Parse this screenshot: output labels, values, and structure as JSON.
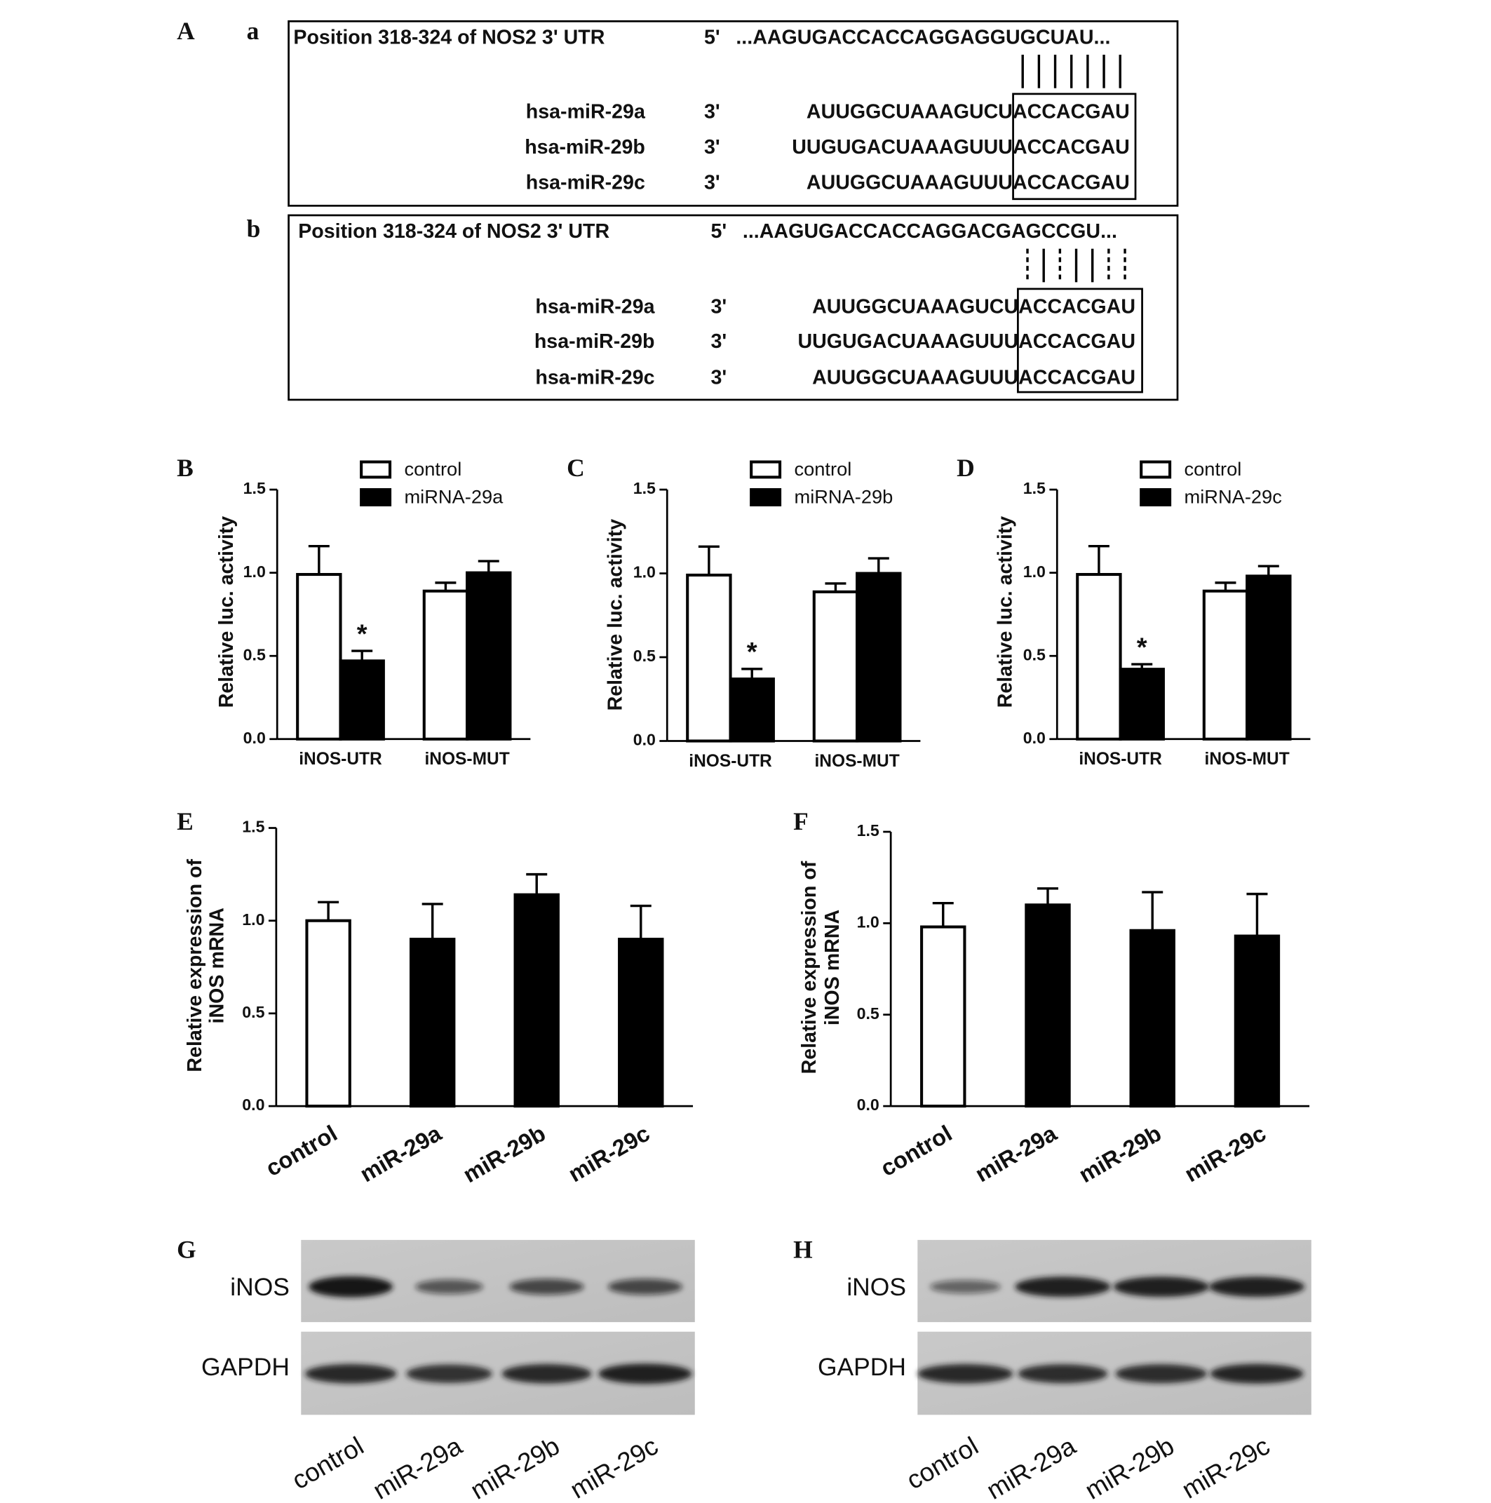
{
  "panel_a": {
    "label": "A",
    "parts": [
      {
        "label": "a",
        "title": "Position 318-324 of NOS2 3' UTR",
        "five": "5'",
        "target": "...AAGUGACCACCAGGAGGUGCUAU...",
        "mirnas": [
          {
            "name": "hsa-miR-29a",
            "three": "3'",
            "seq": "AUUGGCUAAAGUCUACCACGAU"
          },
          {
            "name": "hsa-miR-29b",
            "three": "3'",
            "seq": "UUGUGACUAAAGUUUACCACGAU"
          },
          {
            "name": "hsa-miR-29c",
            "three": "3'",
            "seq": "AUUGGCUAAAGUUUACCACGAU"
          }
        ]
      },
      {
        "label": "b",
        "title": "Position 318-324 of NOS2 3' UTR",
        "five": "5'",
        "target": "...AAGUGACCACCAGGACGAGCCGU...",
        "mirnas": [
          {
            "name": "hsa-miR-29a",
            "three": "3'",
            "seq": "AUUGGCUAAAGUCUACCACGAU"
          },
          {
            "name": "hsa-miR-29b",
            "three": "3'",
            "seq": "UUGUGACUAAAGUUUACCACGAU"
          },
          {
            "name": "hsa-miR-29c",
            "three": "3'",
            "seq": "AUUGGCUAAAGUUUACCACGAU"
          }
        ]
      }
    ]
  },
  "chart_data": [
    {
      "type": "bar",
      "label": "B",
      "y_label": [
        "Relative luc. activity"
      ],
      "categories": [
        "iNOS-UTR",
        "iNOS-MUT"
      ],
      "series": [
        {
          "name": "control",
          "color": "#ffffff",
          "values": [
            0.99,
            0.89
          ],
          "errors": [
            0.17,
            0.05
          ]
        },
        {
          "name": "miRNA-29a",
          "color": "#000000",
          "values": [
            0.47,
            1.0
          ],
          "errors": [
            0.06,
            0.07
          ],
          "annotations": [
            "*",
            null
          ]
        }
      ],
      "ylim": [
        0,
        1.5
      ],
      "yticks": [
        {
          "value": 0,
          "label": "0.0"
        },
        0.5,
        {
          "value": 1,
          "label": "1.0"
        },
        1.5
      ]
    },
    {
      "type": "bar",
      "label": "C",
      "y_label": [
        "Relative luc. activity"
      ],
      "categories": [
        "iNOS-UTR",
        "iNOS-MUT"
      ],
      "series": [
        {
          "name": "control",
          "color": "#ffffff",
          "values": [
            0.99,
            0.89
          ],
          "errors": [
            0.17,
            0.05
          ]
        },
        {
          "name": "miRNA-29b",
          "color": "#000000",
          "values": [
            0.37,
            1.0
          ],
          "errors": [
            0.06,
            0.09
          ],
          "annotations": [
            "*",
            null
          ]
        }
      ],
      "ylim": [
        0,
        1.5
      ],
      "yticks": [
        {
          "value": 0,
          "label": "0.0"
        },
        0.5,
        {
          "value": 1,
          "label": "1.0"
        },
        1.5
      ]
    },
    {
      "type": "bar",
      "label": "D",
      "y_label": [
        "Relative luc. activity"
      ],
      "categories": [
        "iNOS-UTR",
        "iNOS-MUT"
      ],
      "series": [
        {
          "name": "control",
          "color": "#ffffff",
          "values": [
            0.99,
            0.89
          ],
          "errors": [
            0.17,
            0.05
          ]
        },
        {
          "name": "miRNA-29c",
          "color": "#000000",
          "values": [
            0.42,
            0.98
          ],
          "errors": [
            0.03,
            0.06
          ],
          "annotations": [
            "*",
            null
          ]
        }
      ],
      "ylim": [
        0,
        1.5
      ],
      "yticks": [
        {
          "value": 0,
          "label": "0.0"
        },
        0.5,
        {
          "value": 1,
          "label": "1.0"
        },
        1.5
      ]
    },
    {
      "type": "bar",
      "label": "E",
      "y_label": [
        "Relative expression of",
        "iNOS mRNA"
      ],
      "categories": [
        "control",
        "miR-29a",
        "miR-29b",
        "miR-29c"
      ],
      "values": [
        1.0,
        0.9,
        1.14,
        0.9
      ],
      "errors": [
        0.1,
        0.19,
        0.11,
        0.18
      ],
      "colors": [
        "#ffffff",
        "#000000",
        "#000000",
        "#000000"
      ],
      "ylim": [
        0,
        1.5
      ],
      "yticks": [
        {
          "value": 0,
          "label": "0.0"
        },
        0.5,
        {
          "value": 1,
          "label": "1.0"
        },
        1.5
      ]
    },
    {
      "type": "bar",
      "label": "F",
      "y_label": [
        "Relative expression of",
        "iNOS mRNA"
      ],
      "categories": [
        "control",
        "miR-29a",
        "miR-29b",
        "miR-29c"
      ],
      "values": [
        0.98,
        1.1,
        0.96,
        0.93
      ],
      "errors": [
        0.13,
        0.09,
        0.21,
        0.23
      ],
      "colors": [
        "#ffffff",
        "#000000",
        "#000000",
        "#000000"
      ],
      "ylim": [
        0,
        1.5
      ],
      "yticks": [
        {
          "value": 0,
          "label": "0.0"
        },
        0.5,
        {
          "value": 1,
          "label": "1.0"
        },
        1.5
      ]
    }
  ],
  "blots": [
    {
      "label": "G",
      "rows": [
        "iNOS",
        "GAPDH"
      ],
      "lanes": [
        "control",
        "miR-29a",
        "miR-29b",
        "miR-29c"
      ]
    },
    {
      "label": "H",
      "rows": [
        "iNOS",
        "GAPDH"
      ],
      "lanes": [
        "control",
        "miR-29a",
        "miR-29b",
        "miR-29c"
      ]
    }
  ]
}
